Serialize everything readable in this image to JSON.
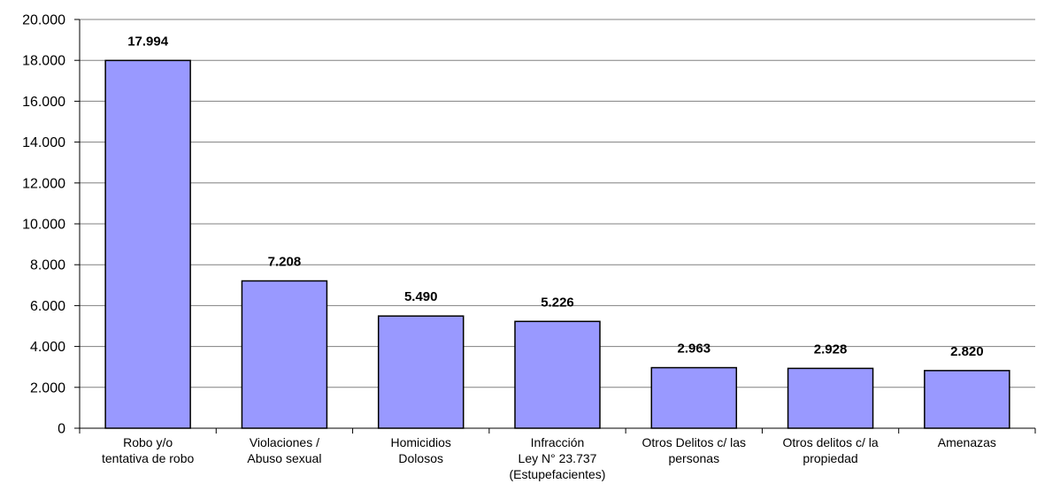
{
  "chart_data": {
    "type": "bar",
    "categories": [
      [
        "Robo y/o",
        "tentativa de robo"
      ],
      [
        "Violaciones /",
        "Abuso sexual"
      ],
      [
        "Homicidios",
        "Dolosos"
      ],
      [
        "Infracción",
        "Ley N° 23.737",
        "(Estupefacientes)"
      ],
      [
        "Otros Delitos c/ las",
        "personas"
      ],
      [
        "Otros delitos c/ la",
        "propiedad"
      ],
      [
        "Amenazas"
      ]
    ],
    "values": [
      17994,
      7208,
      5490,
      5226,
      2963,
      2928,
      2820
    ],
    "data_labels": [
      "17.994",
      "7.208",
      "5.490",
      "5.226",
      "2.963",
      "2.928",
      "2.820"
    ],
    "yticks": [
      0,
      2000,
      4000,
      6000,
      8000,
      10000,
      12000,
      14000,
      16000,
      18000,
      20000
    ],
    "ytick_labels": [
      "0",
      "2.000",
      "4.000",
      "6.000",
      "8.000",
      "10.000",
      "12.000",
      "14.000",
      "16.000",
      "18.000",
      "20.000"
    ],
    "ylim": [
      0,
      20000
    ],
    "grid": true,
    "bar_color": "#9999ff",
    "bar_edge_color": "#000000",
    "grid_color": "#808080",
    "title": "",
    "xlabel": "",
    "ylabel": ""
  }
}
